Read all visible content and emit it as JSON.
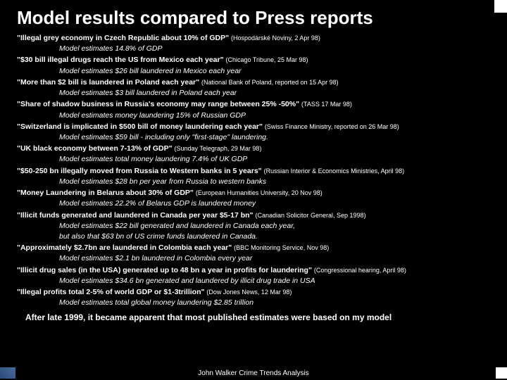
{
  "title": "Model results compared to Press reports",
  "items": [
    {
      "quote": "\"Illegal grey economy in Czech Republic about 10% of GDP\"",
      "source": "(Hospodárské Noviny, 2 Apr 98)",
      "models": [
        "Model estimates 14.8% of GDP"
      ]
    },
    {
      "quote": "\"$30 bill illegal drugs reach the US from Mexico each year\"",
      "source": "(Chicago Tribune, 25 Mar 98)",
      "models": [
        "Model estimates $26 bill laundered in Mexico each year"
      ]
    },
    {
      "quote": "\"More than $2 bill is laundered in Poland each year\"",
      "source": "(National Bank of Poland, reported on 15 Apr 98)",
      "models": [
        "Model estimates $3 bill laundered in Poland each year"
      ]
    },
    {
      "quote": "\"Share of shadow business in Russia's economy may range between 25% -50%\"",
      "source": "(TASS 17 Mar 98)",
      "models": [
        "Model estimates money laundering 15% of Russian GDP"
      ]
    },
    {
      "quote": "\"Switzerland is implicated in $500 bill of money laundering each year\"",
      "source": "(Swiss Finance Ministry, reported on 26 Mar 98)",
      "models": [
        "Model estimates $59 bill - including only \"first-stage\" laundering."
      ]
    },
    {
      "quote": "\"UK black economy between 7-13% of GDP\"",
      "source": "(Sunday Telegraph, 29 Mar 98)",
      "models": [
        "Model estimates total money laundering 7.4% of UK GDP"
      ]
    },
    {
      "quote": "\"$50-250 bn illegally moved from Russia to Western banks in 5 years\"",
      "source": "(Russian Interior & Economics Ministries, April 98)",
      "models": [
        "Model estimates $28 bn per year from Russia to western banks"
      ]
    },
    {
      "quote": "\"Money Laundering in Belarus about 30% of GDP\"",
      "source": "(European Humanities University, 20 Nov 98)",
      "models": [
        "Model estimates 22.2% of Belarus GDP is laundered money"
      ]
    },
    {
      "quote": "\"Illicit funds generated and laundered in Canada per year $5-17 bn\"",
      "source": "(Canadian Solicitor General, Sep 1998)",
      "models": [
        "Model estimates $22 bill generated and laundered in Canada each year,",
        "but also that $63 bn of US crime funds laundered in Canada."
      ]
    },
    {
      "quote": "\"Approximately $2.7bn are laundered in Colombia each year\"",
      "source": "(BBC Monitoring Service, Nov 98)",
      "models": [
        "Model estimates $2.1 bn laundered in Colombia every year"
      ]
    },
    {
      "quote": "\"Illicit drug sales (in the USA) generated up to 48 bn a year in profits for laundering\"",
      "source": "(Congressional hearing, April 98)",
      "models": [
        "Model estimates $34.6 bn generated and laundered by illicit drug trade in USA"
      ]
    },
    {
      "quote": "\"Illegal profits total 2-5% of world GDP or $1-3trillion\"",
      "source": "(Dow Jones News, 12 Mar 98)",
      "models": [
        "Model estimates total global money laundering $2.85 trillion"
      ]
    }
  ],
  "conclusion": "After late 1999, it became apparent that most published estimates were based on my model",
  "footer": "John Walker Crime Trends Analysis"
}
